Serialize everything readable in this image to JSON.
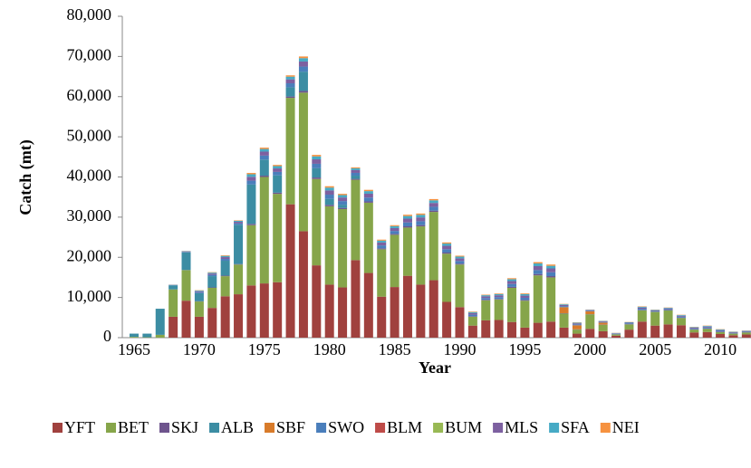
{
  "chart_data": {
    "type": "stacked-bar",
    "x_label": "Year",
    "y_label": "Catch (mt)",
    "categories": [
      "1965",
      null,
      null,
      null,
      null,
      "1970",
      null,
      null,
      null,
      null,
      "1975",
      null,
      null,
      null,
      null,
      "1980",
      null,
      null,
      null,
      null,
      "1985",
      null,
      null,
      null,
      null,
      "1990",
      null,
      null,
      null,
      null,
      "1995",
      null,
      null,
      null,
      null,
      "2000",
      null,
      null,
      null,
      null,
      "2005",
      null,
      null,
      null,
      null,
      "2010",
      null,
      null
    ],
    "ylim": [
      0,
      80000
    ],
    "yticks": [
      0,
      {
        "value": 10000,
        "label": "10,000"
      },
      {
        "value": 20000,
        "label": "20,000"
      },
      {
        "value": 30000,
        "label": "30,000"
      },
      {
        "value": 40000,
        "label": "40,000"
      },
      {
        "value": 50000,
        "label": "50,000"
      },
      {
        "value": 60000,
        "label": "60,000"
      },
      {
        "value": 70000,
        "label": "70,000"
      },
      {
        "value": 80000,
        "label": "80,000"
      }
    ],
    "series": [
      {
        "name": "YFT",
        "color": "#a0413e",
        "values": [
          0,
          0,
          0,
          5200,
          9200,
          5200,
          7400,
          10300,
          10800,
          13000,
          13500,
          13800,
          33200,
          26500,
          18000,
          13200,
          12500,
          19300,
          16100,
          10200,
          12600,
          15400,
          13200,
          14300,
          8900,
          7600,
          3000,
          4300,
          4400,
          3900,
          2500,
          3700,
          4000,
          2500,
          1000,
          2200,
          1600,
          500,
          2000,
          4000,
          3000,
          3300,
          3100,
          1300,
          1400,
          900,
          600,
          800
        ]
      },
      {
        "name": "BET",
        "color": "#86a54a",
        "values": [
          200,
          100,
          700,
          6800,
          7600,
          3800,
          5000,
          5000,
          7400,
          15000,
          26500,
          22000,
          26500,
          34500,
          21500,
          19500,
          19500,
          20000,
          17500,
          11800,
          13000,
          12000,
          14500,
          17000,
          12000,
          10600,
          2200,
          5000,
          5100,
          8500,
          6700,
          11800,
          11000,
          3500,
          1000,
          3600,
          1600,
          300,
          1300,
          2800,
          3400,
          3500,
          1800,
          700,
          800,
          500,
          400,
          500
        ]
      },
      {
        "name": "SKJ",
        "color": "#6e548d",
        "values": [
          0,
          0,
          0,
          20,
          40,
          80,
          110,
          150,
          120,
          320,
          330,
          290,
          330,
          420,
          370,
          350,
          300,
          230,
          320,
          240,
          240,
          320,
          320,
          320,
          280,
          220,
          130,
          140,
          150,
          240,
          180,
          330,
          320,
          90,
          80,
          50,
          50,
          40,
          60,
          100,
          60,
          70,
          80,
          70,
          80,
          70,
          50,
          50
        ]
      },
      {
        "name": "ALB",
        "color": "#3c8da3",
        "values": [
          800,
          900,
          6500,
          1000,
          4400,
          2000,
          2800,
          3700,
          9800,
          9800,
          4000,
          4300,
          2300,
          4800,
          2300,
          1500,
          800,
          800,
          0,
          0,
          0,
          0,
          0,
          0,
          0,
          0,
          0,
          0,
          0,
          0,
          0,
          0,
          0,
          0,
          0,
          0,
          0,
          0,
          0,
          0,
          0,
          0,
          0,
          0,
          0,
          0,
          0,
          0
        ]
      },
      {
        "name": "SBF",
        "color": "#d87b2a",
        "values": [
          0,
          0,
          0,
          0,
          0,
          0,
          0,
          0,
          0,
          0,
          0,
          0,
          0,
          0,
          0,
          0,
          0,
          0,
          0,
          0,
          0,
          0,
          0,
          0,
          0,
          0,
          0,
          0,
          0,
          0,
          0,
          0,
          0,
          1500,
          1000,
          700,
          500,
          0,
          0,
          0,
          0,
          0,
          0,
          0,
          0,
          0,
          0,
          0
        ]
      },
      {
        "name": "SWO",
        "color": "#4a7ebb",
        "values": [
          0,
          0,
          0,
          60,
          120,
          240,
          330,
          450,
          360,
          960,
          990,
          870,
          990,
          1260,
          1110,
          1050,
          900,
          690,
          960,
          720,
          720,
          960,
          960,
          960,
          840,
          660,
          390,
          420,
          450,
          720,
          540,
          990,
          960,
          270,
          240,
          150,
          150,
          120,
          180,
          300,
          180,
          210,
          240,
          210,
          240,
          210,
          150,
          150
        ]
      },
      {
        "name": "BLM",
        "color": "#be4b48",
        "values": [
          0,
          0,
          0,
          0,
          0,
          0,
          0,
          0,
          0,
          0,
          0,
          0,
          0,
          0,
          0,
          0,
          0,
          0,
          0,
          0,
          0,
          0,
          0,
          0,
          0,
          0,
          0,
          0,
          0,
          0,
          0,
          0,
          0,
          0,
          0,
          0,
          0,
          0,
          0,
          0,
          0,
          0,
          0,
          0,
          0,
          0,
          0,
          0
        ]
      },
      {
        "name": "BUM",
        "color": "#98b954",
        "values": [
          0,
          0,
          0,
          0,
          0,
          0,
          0,
          0,
          0,
          0,
          0,
          0,
          0,
          0,
          0,
          0,
          0,
          0,
          0,
          0,
          0,
          0,
          0,
          0,
          0,
          0,
          0,
          0,
          0,
          0,
          0,
          0,
          0,
          0,
          0,
          0,
          0,
          0,
          0,
          0,
          0,
          0,
          0,
          0,
          0,
          0,
          0,
          0
        ]
      },
      {
        "name": "MLS",
        "color": "#7d60a0",
        "values": [
          0,
          0,
          0,
          60,
          120,
          240,
          330,
          450,
          360,
          960,
          990,
          870,
          990,
          1260,
          1110,
          1050,
          900,
          690,
          960,
          720,
          720,
          960,
          960,
          960,
          840,
          660,
          390,
          420,
          450,
          720,
          540,
          990,
          960,
          270,
          240,
          150,
          150,
          120,
          180,
          300,
          180,
          210,
          240,
          210,
          240,
          210,
          150,
          150
        ]
      },
      {
        "name": "SFA",
        "color": "#46aac5",
        "values": [
          0,
          0,
          0,
          40,
          80,
          160,
          220,
          300,
          240,
          640,
          660,
          580,
          660,
          840,
          740,
          700,
          600,
          460,
          640,
          480,
          480,
          640,
          640,
          640,
          560,
          440,
          260,
          280,
          300,
          480,
          360,
          660,
          640,
          180,
          160,
          100,
          100,
          80,
          120,
          200,
          120,
          140,
          160,
          140,
          160,
          140,
          100,
          100
        ]
      },
      {
        "name": "NEI",
        "color": "#f69240",
        "values": [
          0,
          0,
          0,
          20,
          40,
          80,
          110,
          150,
          120,
          320,
          330,
          290,
          330,
          420,
          370,
          350,
          300,
          230,
          320,
          240,
          240,
          320,
          320,
          320,
          280,
          220,
          130,
          140,
          150,
          240,
          180,
          330,
          320,
          90,
          80,
          50,
          50,
          40,
          60,
          100,
          60,
          70,
          80,
          70,
          80,
          70,
          50,
          50
        ]
      }
    ]
  }
}
